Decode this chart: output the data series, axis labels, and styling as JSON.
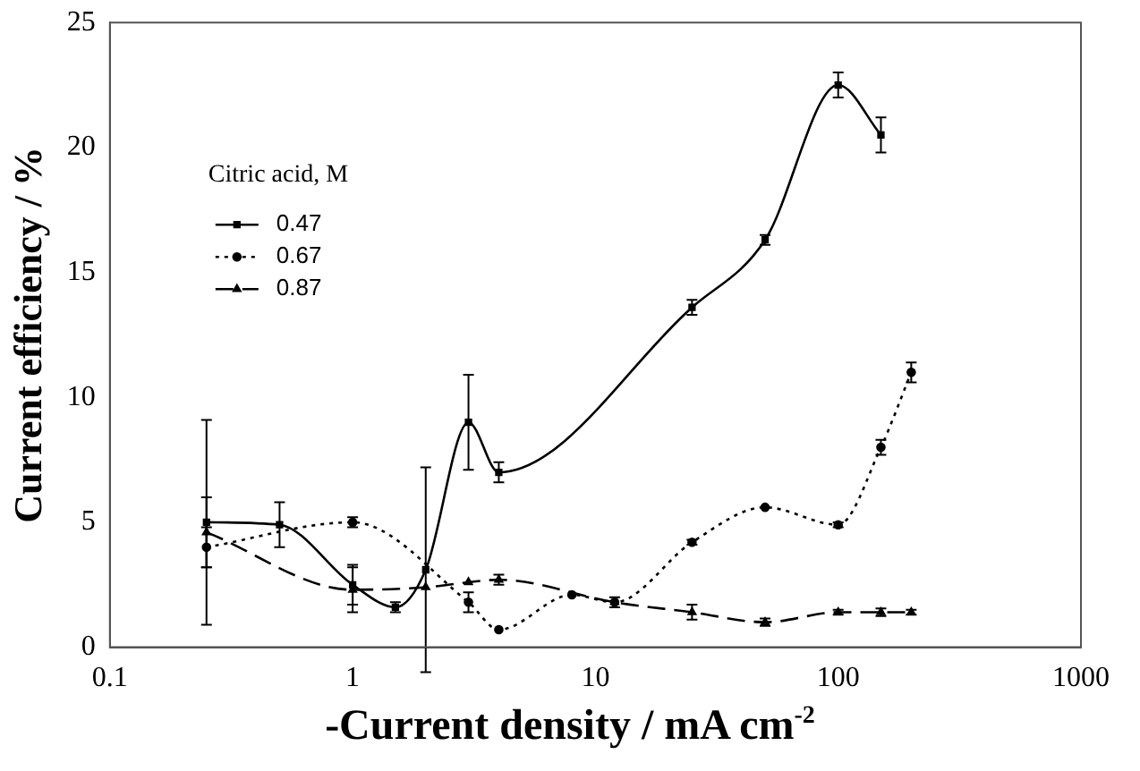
{
  "chart_data": {
    "type": "line",
    "xlabel": "-Current density / mA cm$^{-2}$",
    "ylabel": "Current efficiency / %",
    "legend_title": "Citric acid, M",
    "log": "x",
    "xlim": [
      0.1,
      1000
    ],
    "xticks": [
      0.1,
      1,
      10,
      100,
      1000
    ],
    "ylim": [
      0,
      25
    ],
    "yticks": [
      0,
      5,
      10,
      15,
      20,
      25
    ],
    "grid": false,
    "legend": "top left",
    "series": [
      {
        "name": "0.47",
        "color": "#000000",
        "marker": "square",
        "line_style": "solid",
        "x": [
          0.25,
          0.5,
          1,
          1.5,
          2,
          3,
          4,
          25,
          50,
          100,
          150
        ],
        "values": [
          5.0,
          4.9,
          2.5,
          1.6,
          3.1,
          9.0,
          7.0,
          13.6,
          16.3,
          22.5,
          20.5
        ],
        "errors": [
          4.1,
          0.9,
          0.8,
          0.2,
          4.1,
          1.9,
          0.4,
          0.3,
          0.2,
          0.5,
          0.7
        ]
      },
      {
        "name": "0.67",
        "color": "#000000",
        "marker": "circle",
        "line_style": "dotted",
        "x": [
          0.25,
          1,
          3,
          4,
          8,
          12,
          25,
          50,
          100,
          150,
          200
        ],
        "values": [
          4.0,
          5.0,
          1.8,
          0.7,
          2.1,
          1.8,
          4.2,
          5.6,
          4.9,
          8.0,
          11.0
        ],
        "errors": [
          0.8,
          0.2,
          0.4,
          null,
          null,
          0.2,
          0.1,
          null,
          0.1,
          0.3,
          0.4
        ]
      },
      {
        "name": "0.87",
        "color": "#000000",
        "marker": "triangle",
        "line_style": "dashed",
        "x": [
          0.25,
          1,
          2,
          3,
          4,
          12,
          25,
          50,
          100,
          150,
          200
        ],
        "values": [
          4.6,
          2.3,
          2.4,
          2.6,
          2.7,
          1.8,
          1.4,
          1.0,
          1.4,
          1.4,
          1.4
        ],
        "errors": [
          1.4,
          0.9,
          null,
          null,
          0.2,
          null,
          0.3,
          0.15,
          0.1,
          0.15,
          0.1
        ]
      }
    ]
  }
}
